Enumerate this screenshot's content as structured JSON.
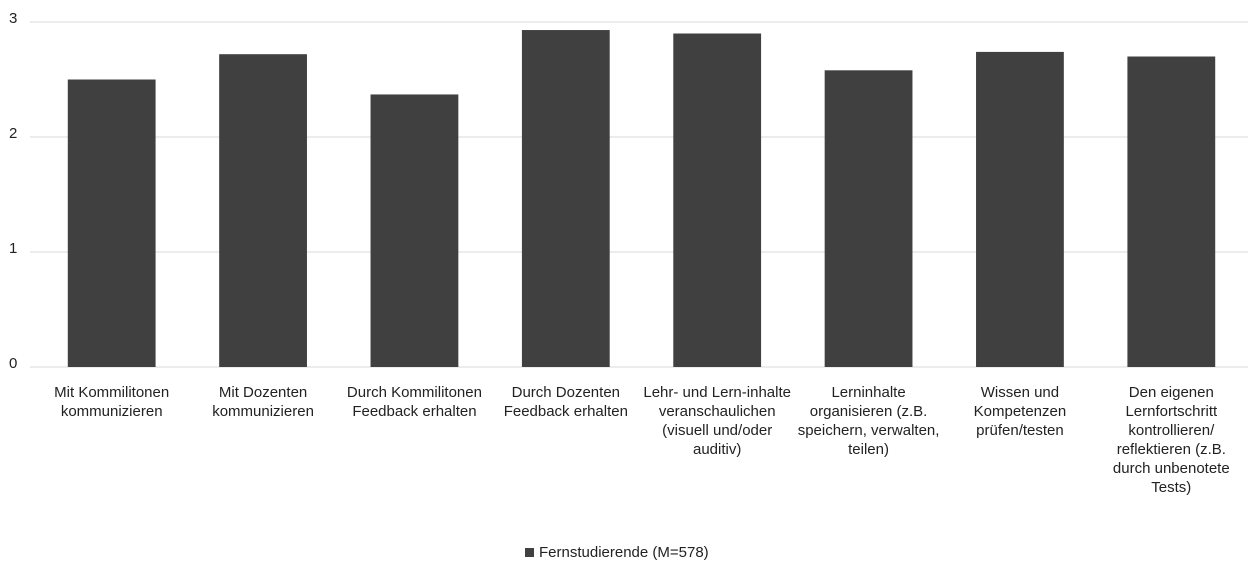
{
  "chart_data": {
    "type": "bar",
    "categories": [
      "Mit Kommilitonen kommunizieren",
      "Mit Dozenten kommunizieren",
      "Durch Kommilitonen Feedback erhalten",
      "Durch Dozenten Feedback erhalten",
      "Lehr- und Lern-inhalte veranschaulichen (visuell und/oder auditiv)",
      "Lerninhalte organisieren (z.B. speichern, verwalten, teilen)",
      "Wissen und Kompetenzen prüfen/testen",
      "Den eigenen Lernfortschritt kontrollieren/ reflektieren (z.B. durch unbenotete Tests)"
    ],
    "series": [
      {
        "name": "Fernstudierende (M=578)",
        "color": "#404040",
        "values": [
          2.5,
          2.72,
          2.37,
          2.93,
          2.9,
          2.58,
          2.74,
          2.7
        ]
      }
    ],
    "ylim": [
      0,
      3
    ],
    "yticks": [
      0,
      1,
      2,
      3
    ],
    "grid": true,
    "legend": "bottom"
  }
}
